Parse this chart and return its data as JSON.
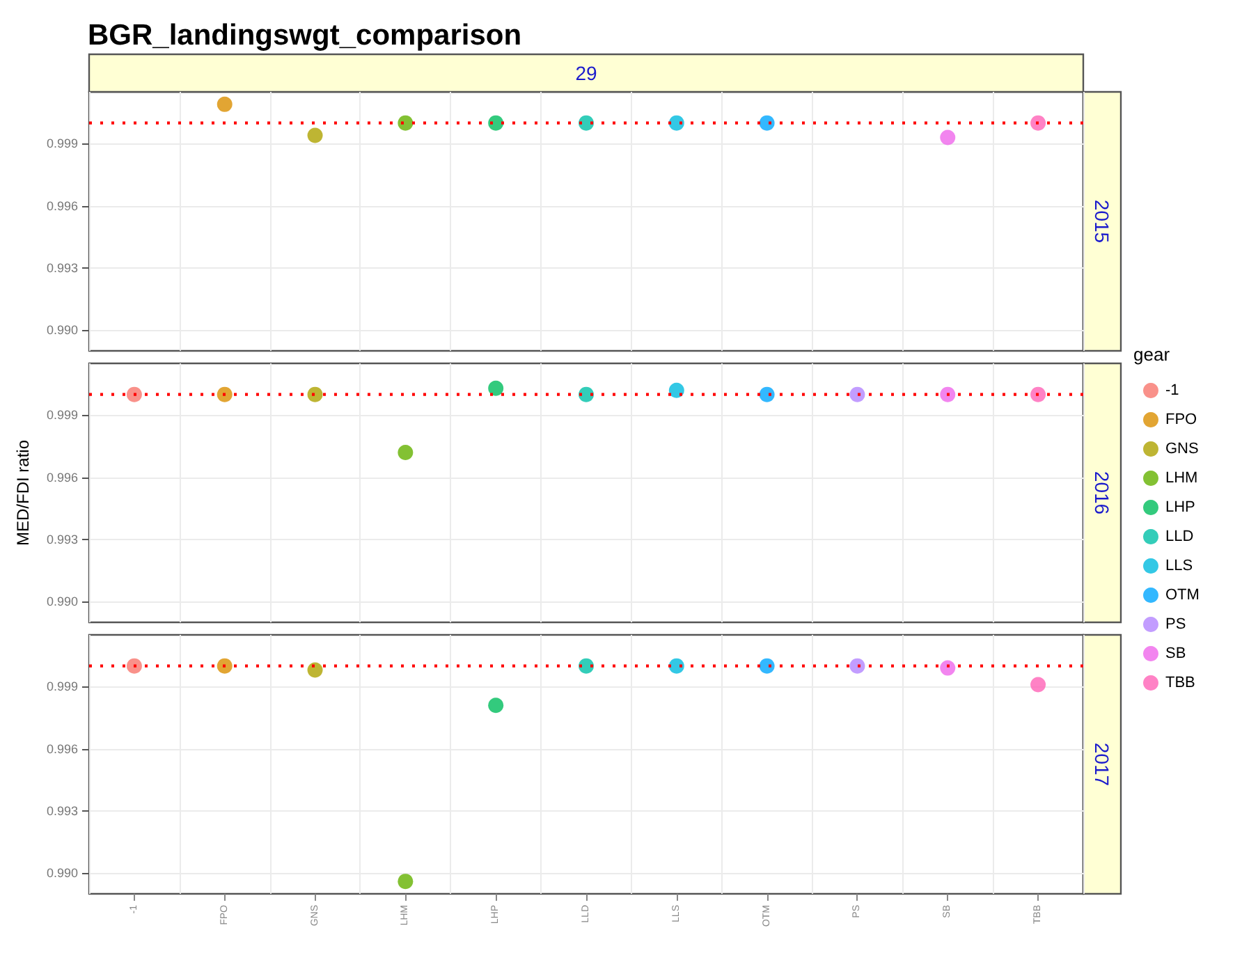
{
  "chart_data": [
    {
      "type": "scatter",
      "title": "BGR_landingswgt_comparison",
      "annotations": [
        "29",
        "2015"
      ],
      "legend": "right",
      "legend_title": "gear",
      "tick_labels": "y",
      "marker": "circle",
      "grid": true,
      "categories": [
        "-1",
        "FPO",
        "GNS",
        "LHM",
        "LHP",
        "LLD",
        "LLS",
        "OTM",
        "PS",
        "SB",
        "TBB"
      ],
      "ylim": [
        0.989,
        1.0015
      ],
      "yticks": [
        {
          "value": 0.99,
          "label": "0.990"
        },
        {
          "value": 0.993,
          "label": "0.993"
        },
        {
          "value": 0.996,
          "label": "0.996"
        },
        {
          "value": 0.999,
          "label": "0.999"
        }
      ],
      "ref_lines": [
        {
          "axis": "y",
          "value": 1,
          "color": "#ff0000",
          "line_style": "dotted"
        }
      ],
      "series": [
        {
          "name": "-1",
          "color": "#f8766d",
          "x": [
            "-1"
          ],
          "values": [
            null
          ]
        },
        {
          "name": "FPO",
          "color": "#db8e00",
          "x": [
            "FPO"
          ],
          "values": [
            1.0009
          ]
        },
        {
          "name": "GNS",
          "color": "#aea200",
          "x": [
            "GNS"
          ],
          "values": [
            0.9994
          ]
        },
        {
          "name": "LHM",
          "color": "#64b200",
          "x": [
            "LHM"
          ],
          "values": [
            1.0
          ]
        },
        {
          "name": "LHP",
          "color": "#00bd5c",
          "x": [
            "LHP"
          ],
          "values": [
            1.0
          ]
        },
        {
          "name": "LLD",
          "color": "#00c1a7",
          "x": [
            "LLD"
          ],
          "values": [
            1.0
          ]
        },
        {
          "name": "LLS",
          "color": "#00bade",
          "x": [
            "LLS"
          ],
          "values": [
            1.0
          ]
        },
        {
          "name": "OTM",
          "color": "#00a6ff",
          "x": [
            "OTM"
          ],
          "values": [
            1.0
          ]
        },
        {
          "name": "PS",
          "color": "#b385ff",
          "x": [
            "PS"
          ],
          "values": [
            null
          ]
        },
        {
          "name": "SB",
          "color": "#ef67eb",
          "x": [
            "SB"
          ],
          "values": [
            0.9993
          ]
        },
        {
          "name": "TBB",
          "color": "#ff63b6",
          "x": [
            "TBB"
          ],
          "values": [
            1.0
          ]
        }
      ]
    },
    {
      "type": "scatter",
      "annotations": [
        "2016"
      ],
      "ylabel": "MED/FDI ratio",
      "tick_labels": "y",
      "marker": "circle",
      "grid": true,
      "categories": [
        "-1",
        "FPO",
        "GNS",
        "LHM",
        "LHP",
        "LLD",
        "LLS",
        "OTM",
        "PS",
        "SB",
        "TBB"
      ],
      "ylim": [
        0.989,
        1.0015
      ],
      "yticks": [
        {
          "value": 0.99,
          "label": "0.990"
        },
        {
          "value": 0.993,
          "label": "0.993"
        },
        {
          "value": 0.996,
          "label": "0.996"
        },
        {
          "value": 0.999,
          "label": "0.999"
        }
      ],
      "ref_lines": [
        {
          "axis": "y",
          "value": 1,
          "color": "#ff0000",
          "line_style": "dotted"
        }
      ],
      "series": [
        {
          "color": "#f8766d",
          "x": [
            "-1"
          ],
          "values": [
            1.0
          ]
        },
        {
          "color": "#db8e00",
          "x": [
            "FPO"
          ],
          "values": [
            1.0
          ]
        },
        {
          "color": "#aea200",
          "x": [
            "GNS"
          ],
          "values": [
            1.0
          ]
        },
        {
          "color": "#64b200",
          "x": [
            "LHM"
          ],
          "values": [
            0.9972
          ]
        },
        {
          "color": "#00bd5c",
          "x": [
            "LHP"
          ],
          "values": [
            1.0003
          ]
        },
        {
          "color": "#00c1a7",
          "x": [
            "LLD"
          ],
          "values": [
            1.0
          ]
        },
        {
          "color": "#00bade",
          "x": [
            "LLS"
          ],
          "values": [
            1.0002
          ]
        },
        {
          "color": "#00a6ff",
          "x": [
            "OTM"
          ],
          "values": [
            1.0
          ]
        },
        {
          "color": "#b385ff",
          "x": [
            "PS"
          ],
          "values": [
            1.0
          ]
        },
        {
          "color": "#ef67eb",
          "x": [
            "SB"
          ],
          "values": [
            1.0
          ]
        },
        {
          "color": "#ff63b6",
          "x": [
            "TBB"
          ],
          "values": [
            1.0
          ]
        }
      ]
    },
    {
      "type": "scatter",
      "annotations": [
        "2017"
      ],
      "marker": "circle",
      "grid": true,
      "categories": [
        "-1",
        "FPO",
        "GNS",
        "LHM",
        "LHP",
        "LLD",
        "LLS",
        "OTM",
        "PS",
        "SB",
        "TBB"
      ],
      "ylim": [
        0.989,
        1.0015
      ],
      "yticks": [
        {
          "value": 0.99,
          "label": "0.990"
        },
        {
          "value": 0.993,
          "label": "0.993"
        },
        {
          "value": 0.996,
          "label": "0.996"
        },
        {
          "value": 0.999,
          "label": "0.999"
        }
      ],
      "ref_lines": [
        {
          "axis": "y",
          "value": 1,
          "color": "#ff0000",
          "line_style": "dotted"
        }
      ],
      "series": [
        {
          "color": "#f8766d",
          "x": [
            "-1"
          ],
          "values": [
            1.0
          ]
        },
        {
          "color": "#db8e00",
          "x": [
            "FPO"
          ],
          "values": [
            1.0
          ]
        },
        {
          "color": "#aea200",
          "x": [
            "GNS"
          ],
          "values": [
            0.9998
          ]
        },
        {
          "color": "#64b200",
          "x": [
            "LHM"
          ],
          "values": [
            0.9896
          ]
        },
        {
          "color": "#00bd5c",
          "x": [
            "LHP"
          ],
          "values": [
            0.9981
          ]
        },
        {
          "color": "#00c1a7",
          "x": [
            "LLD"
          ],
          "values": [
            1.0
          ]
        },
        {
          "color": "#00bade",
          "x": [
            "LLS"
          ],
          "values": [
            1.0
          ]
        },
        {
          "color": "#00a6ff",
          "x": [
            "OTM"
          ],
          "values": [
            1.0
          ]
        },
        {
          "color": "#b385ff",
          "x": [
            "PS"
          ],
          "values": [
            1.0
          ]
        },
        {
          "color": "#ef67eb",
          "x": [
            "SB"
          ],
          "values": [
            0.9999
          ]
        },
        {
          "color": "#ff63b6",
          "x": [
            "TBB"
          ],
          "values": [
            0.9991
          ]
        }
      ]
    }
  ]
}
